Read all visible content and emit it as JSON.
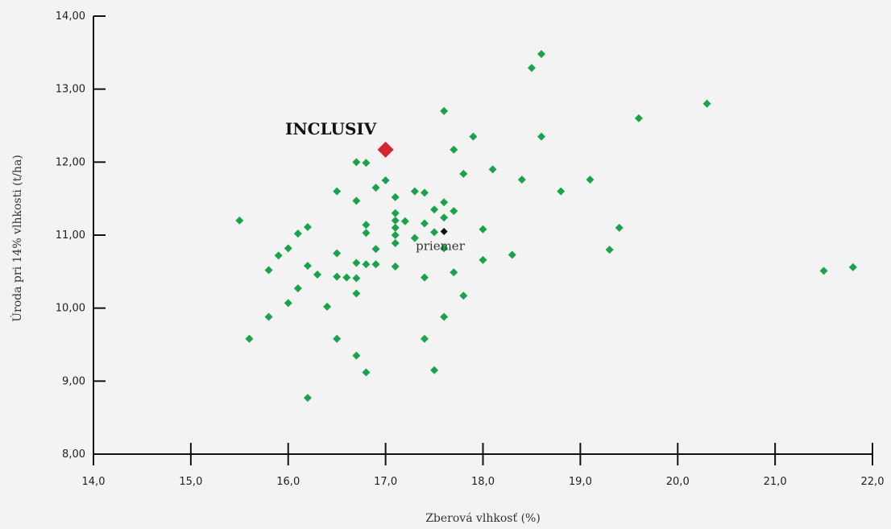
{
  "chart_data": {
    "type": "scatter",
    "xlabel": "Zberová vlhkosť (%)",
    "ylabel": "Úroda pri 14% vlhkosti (t/ha)",
    "xlim": [
      14.0,
      22.0
    ],
    "ylim": [
      8.0,
      14.0
    ],
    "x_ticks": [
      "14,0",
      "15,0",
      "16,0",
      "17,0",
      "18,0",
      "19,0",
      "20,0",
      "21,0",
      "22,0"
    ],
    "y_ticks": [
      "8,00",
      "9,00",
      "10,00",
      "11,00",
      "12,00",
      "13,00",
      "14,00"
    ],
    "grid": false,
    "colors": {
      "series": "#1aa34a",
      "highlight": "#d4262c",
      "reference": "#111111",
      "axis": "#111111",
      "background": "#f3f3f3"
    },
    "series": [
      {
        "points": [
          [
            15.5,
            11.2
          ],
          [
            15.6,
            9.58
          ],
          [
            15.8,
            10.52
          ],
          [
            15.8,
            9.88
          ],
          [
            15.9,
            10.72
          ],
          [
            16.0,
            10.82
          ],
          [
            16.0,
            10.07
          ],
          [
            16.1,
            11.02
          ],
          [
            16.1,
            10.27
          ],
          [
            16.2,
            11.11
          ],
          [
            16.2,
            10.58
          ],
          [
            16.2,
            8.77
          ],
          [
            16.3,
            10.46
          ],
          [
            16.4,
            10.02
          ],
          [
            16.5,
            11.6
          ],
          [
            16.5,
            10.75
          ],
          [
            16.5,
            10.43
          ],
          [
            16.5,
            9.58
          ],
          [
            16.6,
            10.42
          ],
          [
            16.7,
            12.0
          ],
          [
            16.7,
            11.47
          ],
          [
            16.7,
            10.62
          ],
          [
            16.7,
            10.41
          ],
          [
            16.7,
            10.2
          ],
          [
            16.7,
            9.35
          ],
          [
            16.8,
            11.99
          ],
          [
            16.8,
            11.14
          ],
          [
            16.8,
            11.03
          ],
          [
            16.8,
            10.6
          ],
          [
            16.8,
            9.12
          ],
          [
            16.9,
            11.65
          ],
          [
            16.9,
            10.81
          ],
          [
            16.9,
            10.6
          ],
          [
            17.0,
            11.75
          ],
          [
            17.1,
            11.52
          ],
          [
            17.1,
            11.3
          ],
          [
            17.1,
            11.2
          ],
          [
            17.1,
            11.1
          ],
          [
            17.1,
            11.0
          ],
          [
            17.1,
            10.89
          ],
          [
            17.1,
            10.57
          ],
          [
            17.2,
            11.19
          ],
          [
            17.3,
            11.6
          ],
          [
            17.3,
            10.96
          ],
          [
            17.4,
            11.58
          ],
          [
            17.4,
            11.16
          ],
          [
            17.4,
            10.42
          ],
          [
            17.4,
            9.58
          ],
          [
            17.5,
            11.35
          ],
          [
            17.5,
            11.04
          ],
          [
            17.5,
            9.15
          ],
          [
            17.6,
            12.7
          ],
          [
            17.6,
            11.45
          ],
          [
            17.6,
            11.24
          ],
          [
            17.6,
            10.82
          ],
          [
            17.6,
            9.88
          ],
          [
            17.7,
            12.17
          ],
          [
            17.7,
            11.33
          ],
          [
            17.7,
            10.49
          ],
          [
            17.8,
            11.84
          ],
          [
            17.8,
            10.17
          ],
          [
            17.9,
            12.35
          ],
          [
            18.0,
            11.08
          ],
          [
            18.0,
            10.66
          ],
          [
            18.1,
            11.9
          ],
          [
            18.3,
            10.73
          ],
          [
            18.4,
            11.76
          ],
          [
            18.5,
            13.29
          ],
          [
            18.6,
            13.48
          ],
          [
            18.6,
            12.35
          ],
          [
            18.8,
            11.6
          ],
          [
            19.1,
            11.76
          ],
          [
            19.3,
            10.8
          ],
          [
            19.4,
            11.1
          ],
          [
            19.6,
            12.6
          ],
          [
            20.3,
            12.8
          ],
          [
            21.5,
            10.51
          ],
          [
            21.8,
            10.56
          ]
        ]
      }
    ],
    "highlight": {
      "label": "INCLUSIV",
      "x": 17.0,
      "y": 12.17
    },
    "reference": {
      "label": "priemer",
      "x": 17.6,
      "y": 11.05
    }
  }
}
